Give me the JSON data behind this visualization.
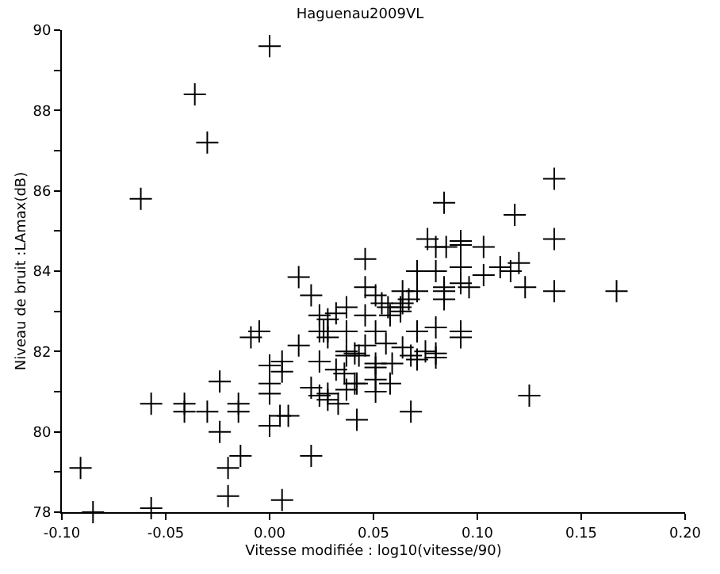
{
  "chart_data": {
    "type": "scatter",
    "title": "Haguenau2009VL",
    "xlabel": "Vitesse modifiée : log10(vitesse/90)",
    "ylabel": "Niveau de bruit :LAmax(dB)",
    "marker": "cross",
    "xlim": [
      -0.1,
      0.2
    ],
    "xticks": [
      {
        "value": -0.1,
        "label": "-0.10"
      },
      {
        "value": -0.05,
        "label": "-0.05"
      },
      {
        "value": 0,
        "label": "0.00"
      },
      {
        "value": 0.05,
        "label": "0.05"
      },
      {
        "value": 0.1,
        "label": "0.10"
      },
      {
        "value": 0.15,
        "label": "0.15"
      },
      {
        "value": 0.2,
        "label": "0.20"
      }
    ],
    "ylim": [
      78,
      90
    ],
    "yticks": [
      78,
      {
        "value": 79,
        "label": null
      },
      80,
      {
        "value": 81,
        "label": null
      },
      82,
      {
        "value": 83,
        "label": null
      },
      84,
      {
        "value": 85,
        "label": null
      },
      86,
      {
        "value": 87,
        "label": null
      },
      88,
      {
        "value": 89,
        "label": null
      },
      90
    ],
    "series": [
      {
        "color": "#000000",
        "x": [
          0.0,
          -0.036,
          -0.03,
          -0.062,
          0.046,
          0.014,
          0.137,
          0.084,
          0.118,
          0.137,
          0.076,
          0.08,
          0.085,
          0.092,
          0.092,
          0.103,
          0.071,
          0.08,
          0.092,
          0.103,
          0.111,
          0.116,
          0.12,
          0.046,
          0.051,
          0.064,
          0.071,
          0.084,
          0.084,
          0.084,
          0.092,
          0.096,
          0.123,
          0.137,
          0.167,
          0.054,
          0.057,
          0.064,
          0.063,
          0.067,
          0.046,
          0.058,
          0.063,
          0.051,
          0.071,
          0.08,
          0.092,
          0.092,
          0.046,
          0.056,
          0.043,
          0.064,
          0.068,
          0.071,
          0.075,
          0.08,
          0.08,
          0.051,
          0.051,
          0.059,
          0.042,
          0.051,
          0.051,
          0.058,
          0.125,
          0.042,
          0.068,
          0.02,
          0.024,
          0.028,
          0.032,
          0.037,
          0.024,
          0.026,
          0.028,
          0.028,
          0.037,
          0.014,
          0.037,
          0.037,
          0.041,
          -0.009,
          -0.005,
          0.006,
          0.0,
          0.006,
          0.024,
          0.032,
          0.036,
          0.0,
          0.0,
          0.02,
          0.024,
          0.028,
          0.028,
          0.033,
          0.037,
          0.041,
          -0.024,
          -0.057,
          -0.041,
          -0.041,
          -0.03,
          -0.015,
          -0.015,
          0.0,
          0.005,
          0.009,
          -0.024,
          0.02,
          -0.014,
          -0.02,
          -0.091,
          -0.02,
          0.006,
          -0.085,
          -0.057
        ],
        "values": [
          89.6,
          88.4,
          87.2,
          85.8,
          84.3,
          83.85,
          86.3,
          85.7,
          85.4,
          84.8,
          84.8,
          84.6,
          84.6,
          84.75,
          84.65,
          84.6,
          84.0,
          84.0,
          84.1,
          83.9,
          84.1,
          84.0,
          84.2,
          83.6,
          83.4,
          83.5,
          83.5,
          83.6,
          83.5,
          83.3,
          83.7,
          83.6,
          83.6,
          83.5,
          83.5,
          83.2,
          83.1,
          83.2,
          83.1,
          83.3,
          82.9,
          82.9,
          83.0,
          82.5,
          82.5,
          82.6,
          82.5,
          82.35,
          82.15,
          82.2,
          81.9,
          82.1,
          81.9,
          81.8,
          82.0,
          81.95,
          81.85,
          81.7,
          81.6,
          81.7,
          81.2,
          81.3,
          81.0,
          81.2,
          80.9,
          80.3,
          80.5,
          83.4,
          82.9,
          82.8,
          82.95,
          83.1,
          82.5,
          82.5,
          82.5,
          82.35,
          82.5,
          82.15,
          82.0,
          81.9,
          81.95,
          82.35,
          82.5,
          81.75,
          81.65,
          81.5,
          81.75,
          81.55,
          81.45,
          81.2,
          80.95,
          81.1,
          80.9,
          80.95,
          80.8,
          80.7,
          81.05,
          81.2,
          81.25,
          80.7,
          80.7,
          80.5,
          80.5,
          80.7,
          80.5,
          80.15,
          80.4,
          80.4,
          80.0,
          79.4,
          79.4,
          79.1,
          79.1,
          78.4,
          78.3,
          78.0,
          78.1
        ]
      }
    ]
  }
}
